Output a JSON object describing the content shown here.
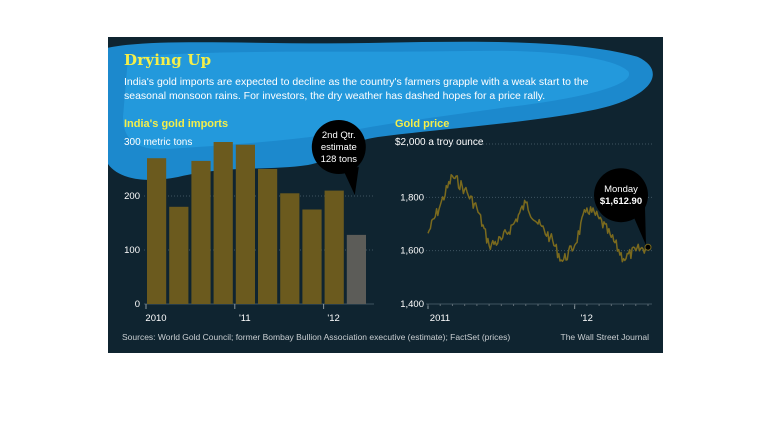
{
  "header": {
    "title": "Drying Up",
    "subtitle": "India's gold imports are expected to decline as the country's farmers grapple with a weak start to the seasonal monsoon rains. For investors, the dry weather has dashed hopes for a price rally."
  },
  "footer": {
    "source": "Sources: World Gold Council; former Bombay Bullion Association executive (estimate); FactSet (prices)",
    "credit": "The Wall Street Journal"
  },
  "colors": {
    "panel_bg": "#0f2430",
    "bar": "#6b5a1e",
    "estimate_bar": "#5c5c58",
    "line": "#7a6a1e",
    "title": "#f4ee4a",
    "grid": "#3f5360",
    "splash": "#1e8fd6"
  },
  "chart_data": [
    {
      "type": "bar",
      "title": "India's gold imports",
      "unit_label": "300 metric tons",
      "ylim": [
        0,
        300
      ],
      "yticks": [
        0,
        100,
        200
      ],
      "quarters": [
        "Q1 2010",
        "Q2 2010",
        "Q3 2010",
        "Q4 2010",
        "Q1 2011",
        "Q2 2011",
        "Q3 2011",
        "Q4 2011",
        "Q1 2012",
        "Q2 2012"
      ],
      "values": [
        270,
        180,
        265,
        300,
        295,
        250,
        205,
        175,
        210,
        128
      ],
      "estimate_index": 9,
      "xtick_labels": [
        {
          "label": "2010",
          "index": 0
        },
        {
          "label": "'11",
          "index": 4
        },
        {
          "label": "'12",
          "index": 8
        }
      ],
      "annotation": {
        "lines": [
          "2nd Qtr.",
          "estimate",
          "128 tons"
        ]
      },
      "grid": true
    },
    {
      "type": "line",
      "title": "Gold price",
      "unit_label": "$2,000 a troy ounce",
      "ylim": [
        1400,
        2000
      ],
      "yticks": [
        1400,
        1600,
        1800
      ],
      "ytick_labels": [
        "1,400",
        "1,600",
        "1,800"
      ],
      "x_start": "2011-01",
      "x_end": "2012-07",
      "xtick_labels": [
        {
          "label": "2011",
          "month": "2011-01"
        },
        {
          "label": "'12",
          "month": "2012-01"
        }
      ],
      "points": [
        [
          "2011-01",
          1665
        ],
        [
          "2011-02",
          1770
        ],
        [
          "2011-03",
          1880
        ],
        [
          "2011-04",
          1830
        ],
        [
          "2011-05",
          1760
        ],
        [
          "2011-06",
          1620
        ],
        [
          "2011-07",
          1640
        ],
        [
          "2011-08",
          1700
        ],
        [
          "2011-09",
          1780
        ],
        [
          "2011-10",
          1700
        ],
        [
          "2011-11",
          1650
        ],
        [
          "2011-12",
          1560
        ],
        [
          "2012-01",
          1620
        ],
        [
          "2012-02",
          1760
        ],
        [
          "2012-03",
          1720
        ],
        [
          "2012-04",
          1650
        ],
        [
          "2012-05",
          1570
        ],
        [
          "2012-06",
          1600
        ],
        [
          "2012-07",
          1612.9
        ]
      ],
      "annotation": {
        "lines": [
          "Monday",
          "$1,612.90"
        ]
      },
      "grid": true
    }
  ]
}
